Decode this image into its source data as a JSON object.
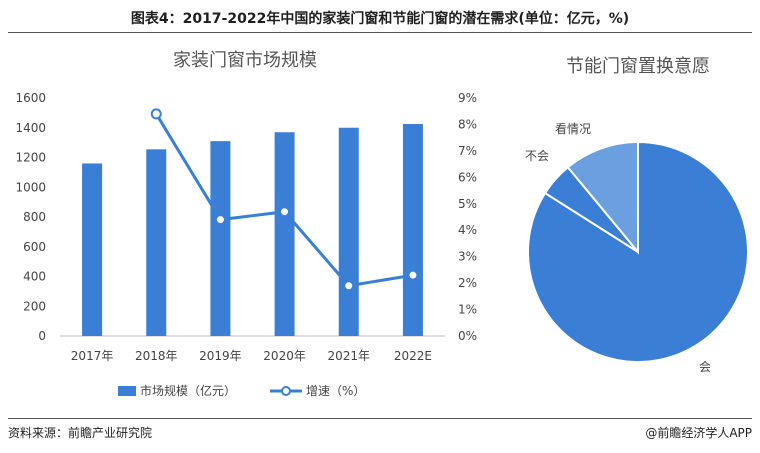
{
  "figure_title": "图表4：2017-2022年中国的家装门窗和节能门窗的潜在需求(单位：亿元，%)",
  "source": "资料来源：前瞻产业研究院",
  "brand": "@前瞻经济学人APP",
  "chart_data": [
    {
      "type": "bar",
      "title": "家装门窗市场规模",
      "categories": [
        "2017年",
        "2018年",
        "2019年",
        "2020年",
        "2021年",
        "2022E"
      ],
      "series": [
        {
          "name": "市场规模（亿元）",
          "type": "bar",
          "axis": "left",
          "values": [
            1160,
            1255,
            1310,
            1370,
            1400,
            1425
          ]
        },
        {
          "name": "增速（%）",
          "type": "line",
          "axis": "right",
          "values": [
            null,
            8.4,
            4.4,
            4.7,
            1.9,
            2.3
          ]
        }
      ],
      "y_left": {
        "min": 0,
        "max": 1600,
        "step": 200,
        "ticks": [
          "0",
          "200",
          "400",
          "600",
          "800",
          "1000",
          "1200",
          "1400",
          "1600"
        ]
      },
      "y_right": {
        "min": 0,
        "max": 9,
        "step": 1,
        "ticks": [
          "0%",
          "1%",
          "2%",
          "3%",
          "4%",
          "5%",
          "6%",
          "7%",
          "8%",
          "9%"
        ]
      },
      "legend_position": "bottom",
      "grid": false,
      "colors": {
        "bar": "#3a7fd5",
        "line": "#3a7fd5"
      }
    },
    {
      "type": "pie",
      "title": "节能门窗置换意愿",
      "labels": [
        "会",
        "不会",
        "看情况"
      ],
      "values": [
        84,
        5,
        11
      ],
      "colors": [
        "#3a7fd5",
        "#3a7fd5",
        "#6a9fe0"
      ]
    }
  ]
}
